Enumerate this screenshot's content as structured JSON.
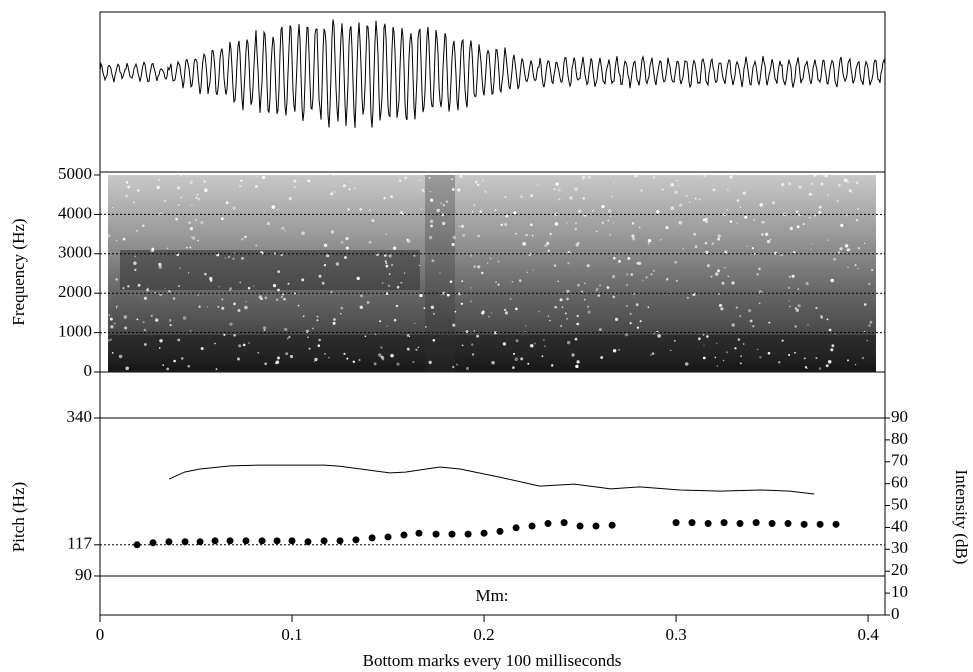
{
  "chart_data": [
    {
      "type": "spectrogram",
      "ylabel": "Frequency (Hz)",
      "ylim": [
        0,
        5000
      ],
      "yticks": [
        0,
        1000,
        2000,
        3000,
        4000,
        5000
      ],
      "grid": true
    },
    {
      "type": "scatter",
      "ylabel": "Pitch (Hz)",
      "y2label": "Intensity (dB)",
      "xlabel": "Bottom marks every 100 milliseconds",
      "annotation": "Mm:",
      "ylim": [
        90,
        340
      ],
      "yscale": "log",
      "yticks": [
        90,
        117,
        340
      ],
      "y2lim": [
        0,
        90
      ],
      "y2ticks": [
        0,
        10,
        20,
        30,
        40,
        50,
        60,
        70,
        80,
        90
      ],
      "xlim": [
        0,
        0.4088
      ],
      "xticks": [
        0,
        0.1,
        0.2,
        0.3,
        0.4
      ],
      "series": [
        {
          "marker": "dot",
          "color": "#000000",
          "x": [
            0.0193,
            0.0276,
            0.0359,
            0.0443,
            0.0521,
            0.0599,
            0.0677,
            0.076,
            0.0844,
            0.0922,
            0.1,
            0.1083,
            0.1167,
            0.125,
            0.1333,
            0.1417,
            0.15,
            0.1583,
            0.1661,
            0.175,
            0.1833,
            0.1917,
            0.2,
            0.2083,
            0.2167,
            0.225,
            0.2333,
            0.2417,
            0.25,
            0.2583,
            0.2667,
            0.3,
            0.3083,
            0.3167,
            0.325,
            0.3333,
            0.3417,
            0.35,
            0.3583,
            0.3667,
            0.375,
            0.3833
          ],
          "values": [
            117,
            119,
            120,
            120,
            120,
            121,
            121,
            121,
            121,
            121,
            121,
            120,
            121,
            121,
            122,
            124,
            125,
            127,
            129,
            128,
            128,
            128,
            129,
            131,
            135,
            137,
            140,
            141,
            137,
            137,
            138,
            141,
            141,
            140,
            141,
            140,
            141,
            140,
            140,
            139,
            139,
            139
          ]
        },
        {
          "marker": "line",
          "axis": "y2",
          "color": "#000000",
          "x": [
            0.036,
            0.044,
            0.052,
            0.068,
            0.083,
            0.1,
            0.117,
            0.125,
            0.151,
            0.159,
            0.177,
            0.1875,
            0.208,
            0.229,
            0.247,
            0.266,
            0.281,
            0.302,
            0.323,
            0.344,
            0.359,
            0.372
          ],
          "values": [
            62.1,
            65.3,
            66.7,
            68.1,
            68.5,
            68.5,
            68.5,
            68,
            64.9,
            65.3,
            67.6,
            66.7,
            63,
            58.9,
            59.8,
            57.6,
            58.5,
            57.1,
            56.6,
            57.1,
            56.6,
            55.3
          ]
        }
      ]
    }
  ]
}
